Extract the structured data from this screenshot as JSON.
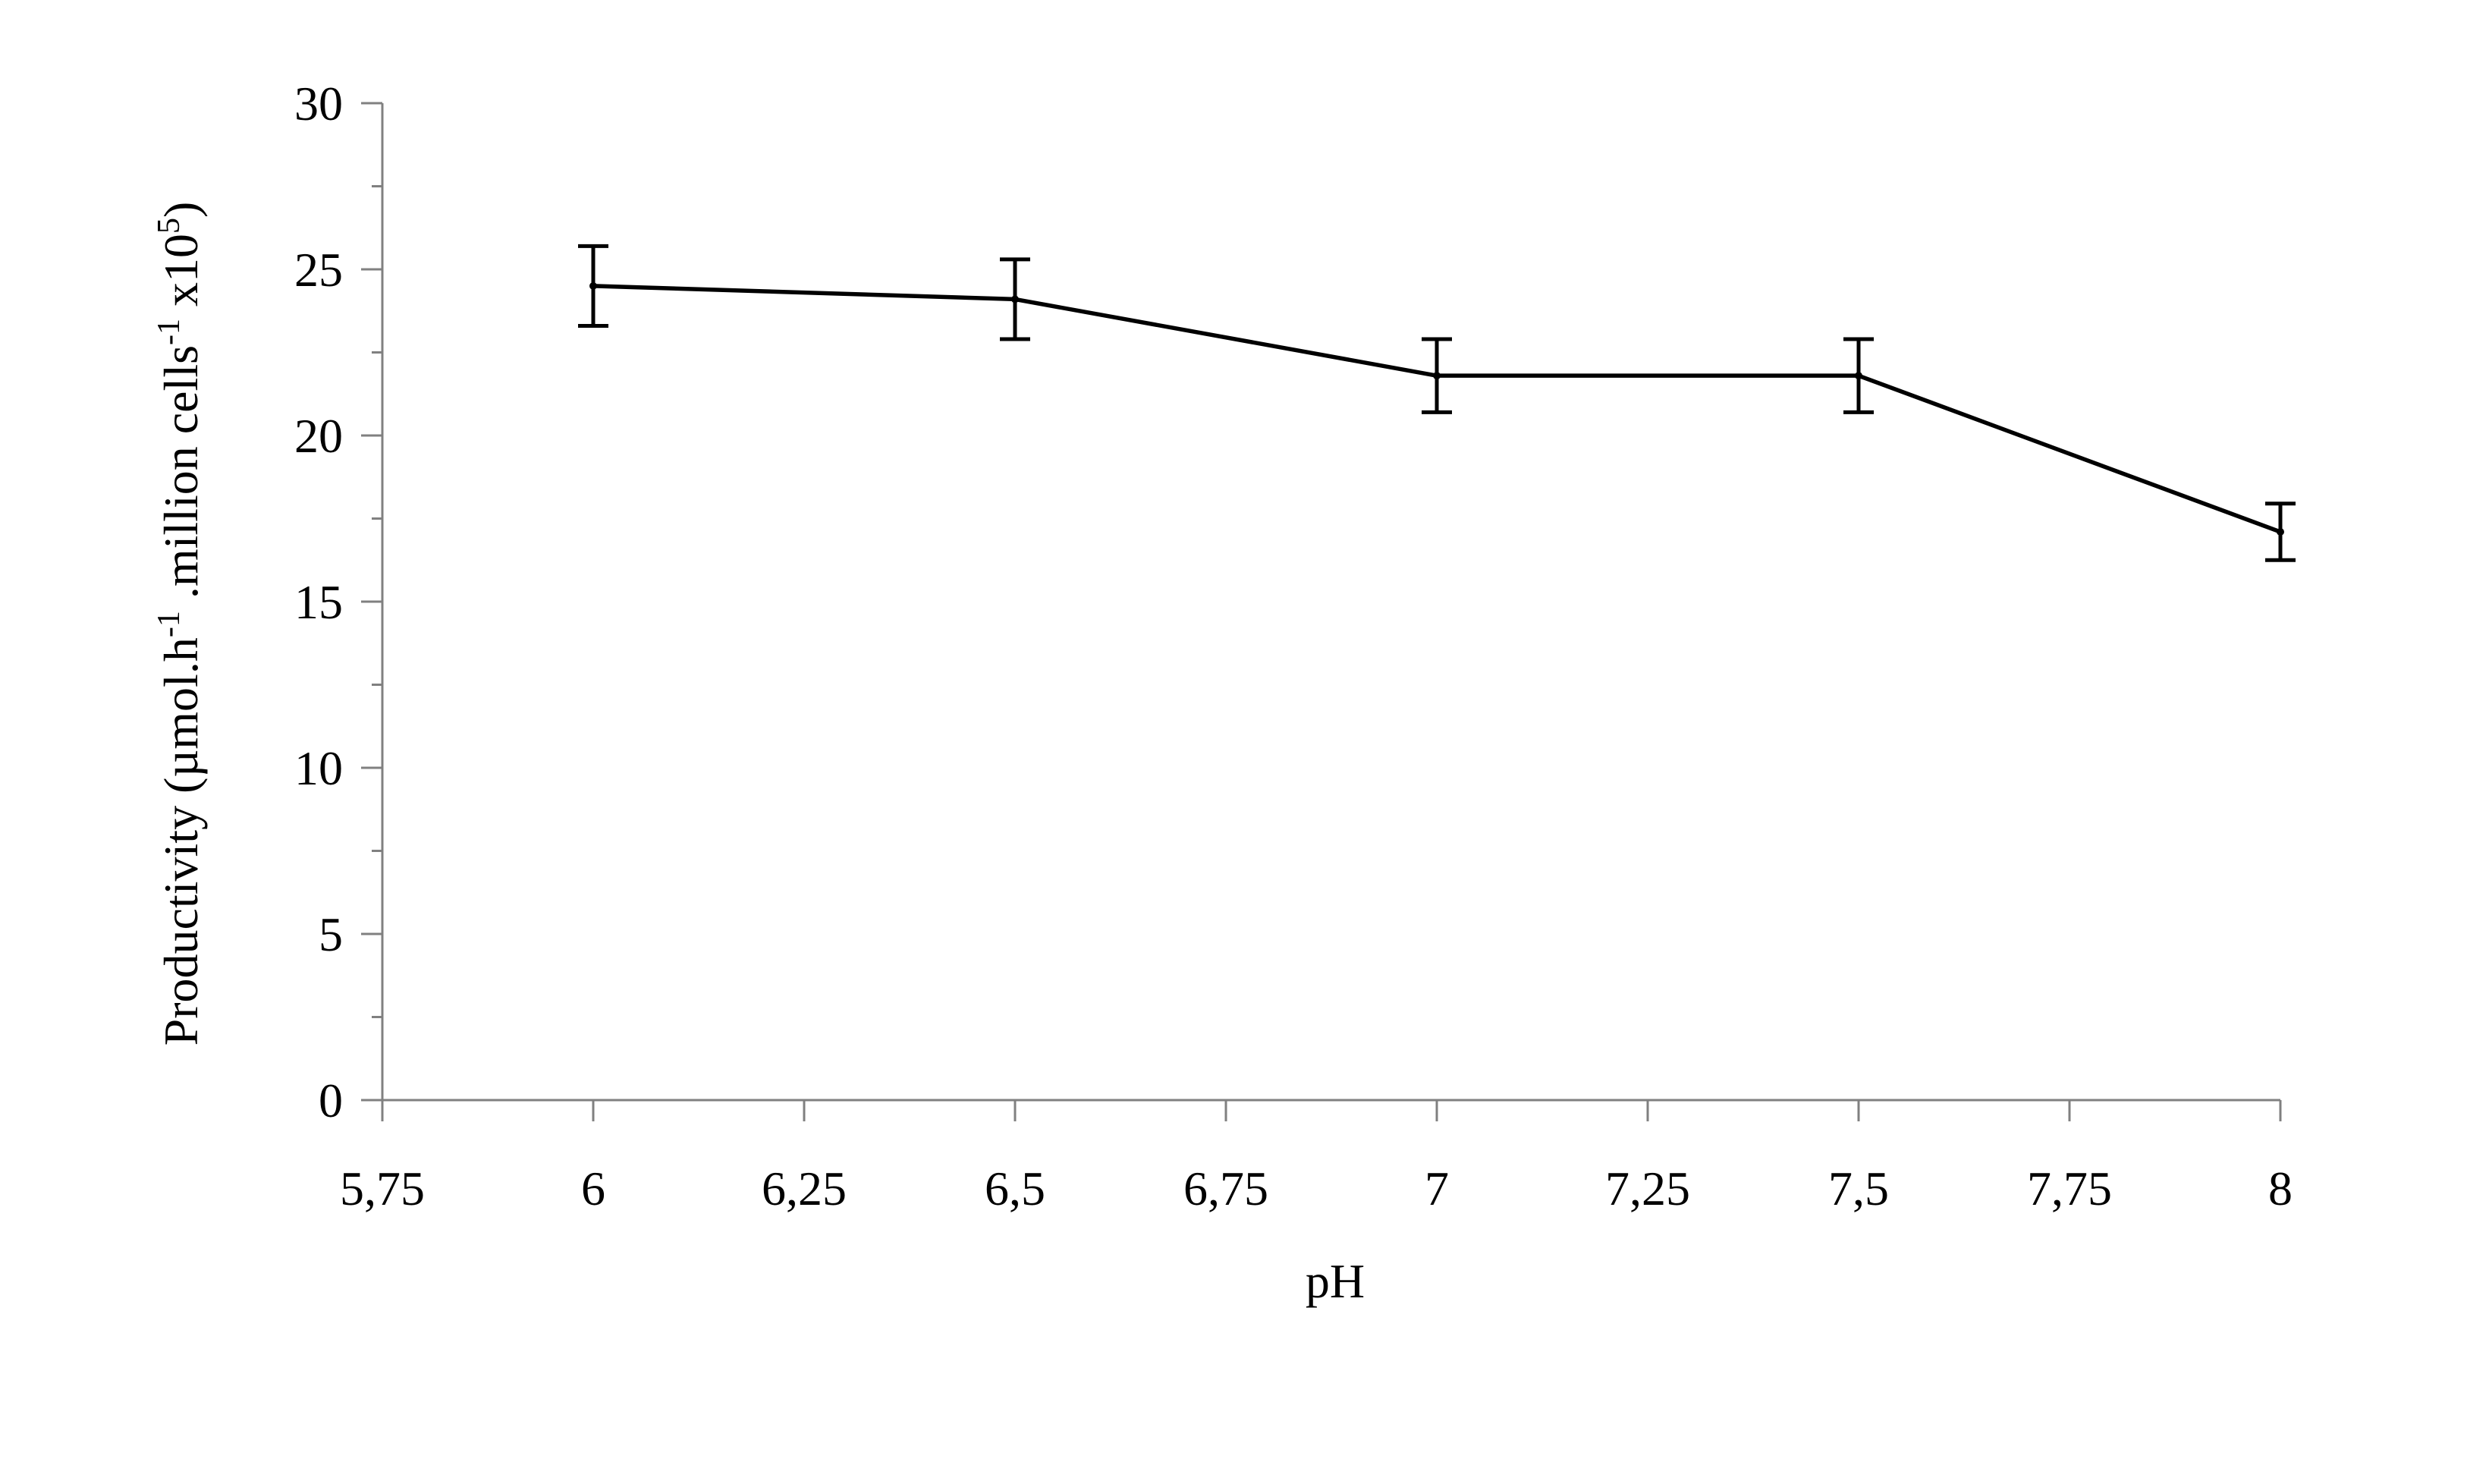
{
  "chart_data": {
    "type": "line",
    "xlabel": "pH",
    "ylabel": {
      "parts": [
        {
          "text": "Productivity (µmol.h",
          "sup": false
        },
        {
          "text": "-1",
          "sup": true
        },
        {
          "text": " .million cells",
          "sup": false
        },
        {
          "text": "-1",
          "sup": true
        },
        {
          "text": "  x10",
          "sup": false
        },
        {
          "text": "5",
          "sup": true
        },
        {
          "text": ")",
          "sup": false
        }
      ]
    },
    "xlim": [
      5.75,
      8
    ],
    "ylim": [
      0,
      30
    ],
    "x_ticks": [
      5.75,
      6,
      6.25,
      6.5,
      6.75,
      7,
      7.25,
      7.5,
      7.75,
      8
    ],
    "x_tick_labels": [
      "5,75",
      "6",
      "6,25",
      "6,5",
      "6,75",
      "7",
      "7,25",
      "7,5",
      "7,75",
      "8"
    ],
    "y_ticks": [
      0,
      5,
      10,
      15,
      20,
      25,
      30
    ],
    "y_tick_labels": [
      "0",
      "5",
      "10",
      "15",
      "20",
      "25",
      "30"
    ],
    "y_minor_ticks": [
      2.5,
      7.5,
      12.5,
      17.5,
      22.5,
      27.5
    ],
    "grid": false,
    "legend": "none",
    "series": [
      {
        "x": [
          6,
          6.5,
          7,
          7.5,
          8
        ],
        "y": [
          24.5,
          24.1,
          21.8,
          21.8,
          17.1
        ],
        "error": [
          1.2,
          1.2,
          1.1,
          1.1,
          0.85
        ],
        "color": "#000000"
      }
    ]
  }
}
